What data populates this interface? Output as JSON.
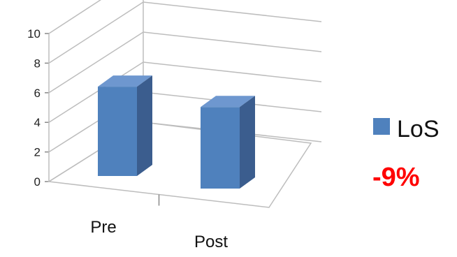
{
  "chart_data": {
    "type": "bar",
    "categories": [
      "Pre",
      "Post"
    ],
    "series": [
      {
        "name": "LoS",
        "values": [
          6.3,
          5.75
        ],
        "color": "#4f81bd"
      }
    ],
    "yticks": [
      "0",
      "2",
      "4",
      "6",
      "8",
      "10"
    ],
    "ylim": [
      0,
      10
    ],
    "grid": true,
    "legend_position": "right",
    "annotation": {
      "text": "-9%",
      "color": "#ff0000"
    }
  }
}
